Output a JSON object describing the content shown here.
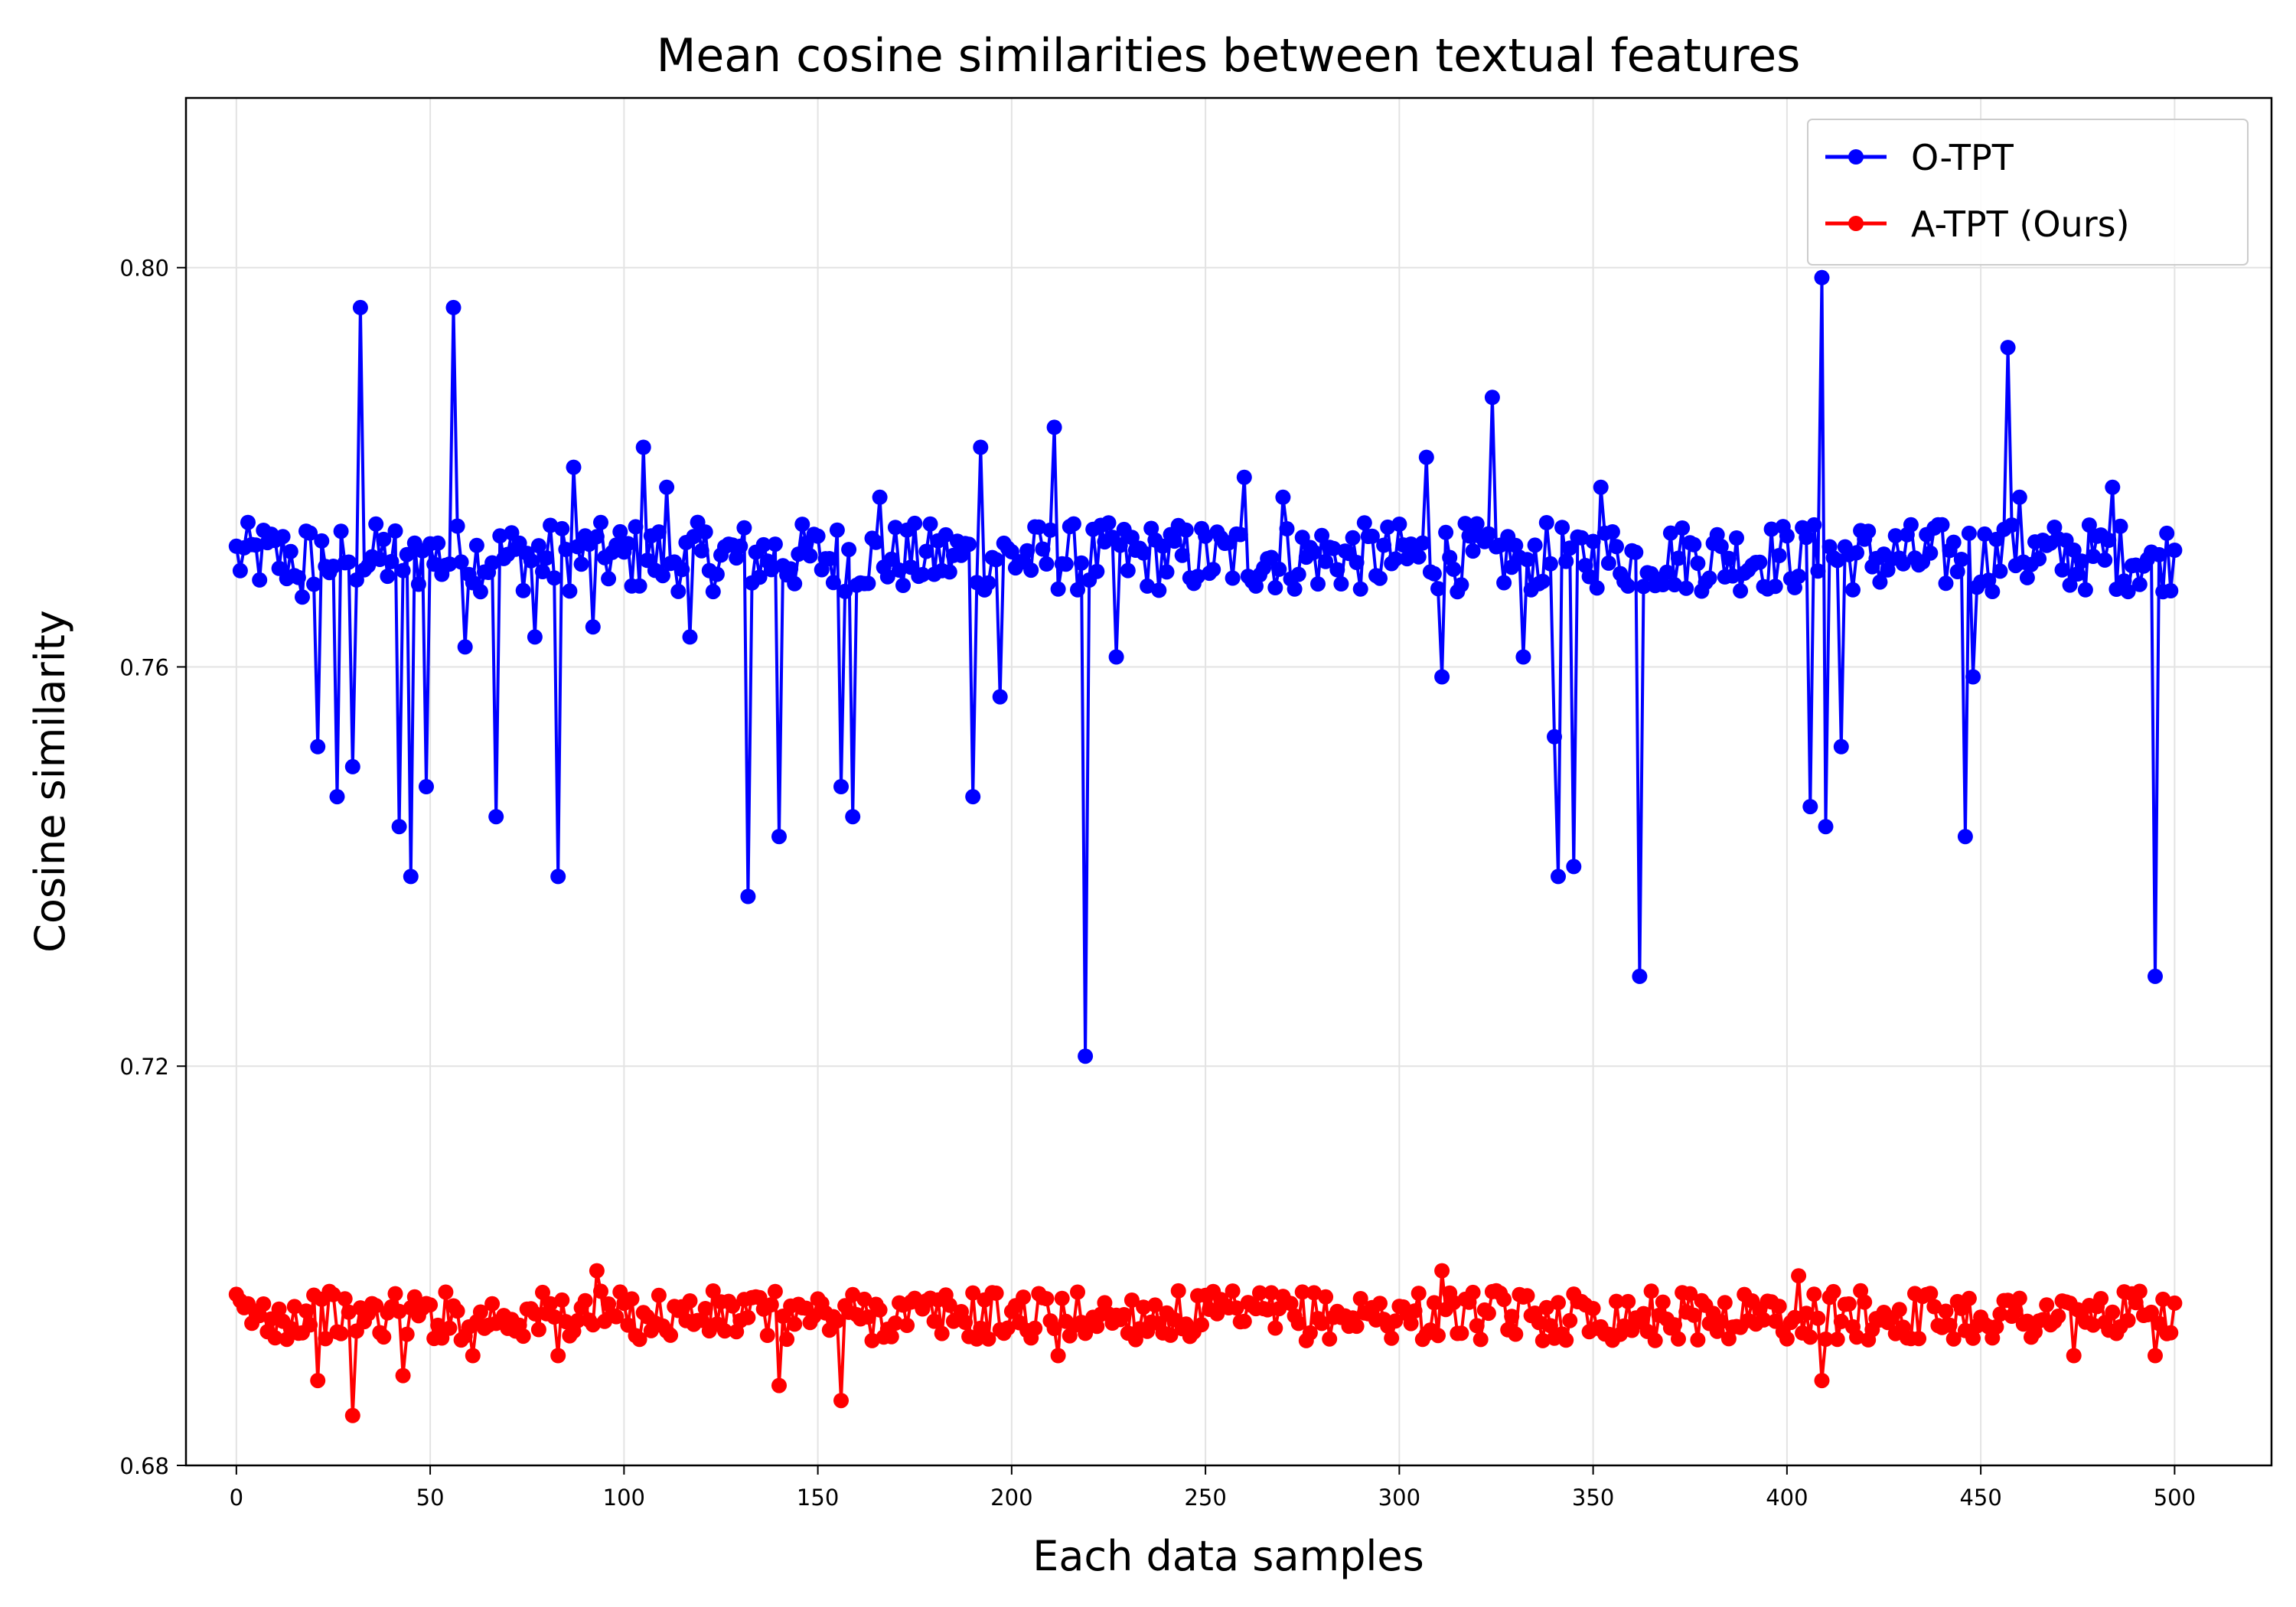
{
  "chart_data": {
    "type": "line",
    "title": "Mean cosine similarities between textual features",
    "xlabel": "Each data samples",
    "ylabel": "Cosine similarity",
    "xlim": [
      -13,
      525
    ],
    "ylim": [
      0.68,
      0.817
    ],
    "xticks": [
      0,
      50,
      100,
      150,
      200,
      250,
      300,
      350,
      400,
      450,
      500
    ],
    "yticks": [
      0.68,
      0.72,
      0.76,
      0.8
    ],
    "ytick_labels": [
      "0.68",
      "0.72",
      "0.76",
      "0.80"
    ],
    "grid": true,
    "legend_position": "top-right",
    "marker": "circle",
    "x": "0..500 step 1 (sample index)",
    "series": [
      {
        "name": "O-TPT",
        "color": "#0000ff",
        "base": 0.771,
        "noise_amplitude": 0.0035,
        "outliers": {
          "17": 0.767,
          "21": 0.752,
          "26": 0.747,
          "30": 0.75,
          "32": 0.796,
          "42": 0.744,
          "45": 0.739,
          "49": 0.748,
          "56": 0.796,
          "59": 0.762,
          "67": 0.745,
          "77": 0.763,
          "83": 0.739,
          "87": 0.78,
          "92": 0.764,
          "105": 0.782,
          "111": 0.778,
          "117": 0.763,
          "132": 0.737,
          "140": 0.743,
          "156": 0.748,
          "159": 0.745,
          "166": 0.777,
          "190": 0.747,
          "192": 0.782,
          "197": 0.757,
          "211": 0.784,
          "219": 0.721,
          "227": 0.761,
          "260": 0.779,
          "270": 0.777,
          "307": 0.781,
          "311": 0.759,
          "324": 0.787,
          "332": 0.761,
          "340": 0.753,
          "341": 0.739,
          "345": 0.74,
          "352": 0.778,
          "362": 0.729,
          "406": 0.746,
          "409": 0.799,
          "410": 0.744,
          "414": 0.752,
          "446": 0.743,
          "448": 0.759,
          "457": 0.792,
          "460": 0.777,
          "484": 0.778,
          "495": 0.729
        }
      },
      {
        "name": "A-TPT (Ours)",
        "color": "#ff0000",
        "base": 0.695,
        "noise_amplitude": 0.0025,
        "outliers": {
          "21": 0.6885,
          "30": 0.685,
          "43": 0.689,
          "61": 0.691,
          "83": 0.691,
          "93": 0.6995,
          "140": 0.688,
          "156": 0.6865,
          "212": 0.691,
          "311": 0.6995,
          "403": 0.699,
          "409": 0.6885,
          "474": 0.691,
          "495": 0.691
        }
      }
    ]
  }
}
